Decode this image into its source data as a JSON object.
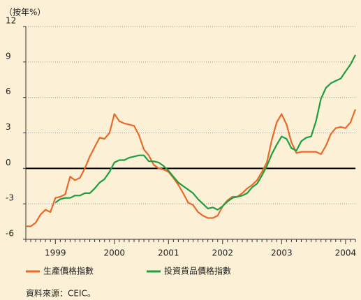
{
  "chart_data": {
    "type": "line",
    "y_axis_label": "（按年%）",
    "categories": [
      null,
      null,
      null,
      null,
      null,
      null,
      "1999",
      null,
      null,
      null,
      null,
      null,
      null,
      null,
      null,
      null,
      null,
      null,
      "2000",
      null,
      null,
      null,
      null,
      null,
      null,
      null,
      null,
      null,
      null,
      "2001",
      null,
      null,
      null,
      null,
      null,
      null,
      null,
      null,
      null,
      null,
      "2002",
      null,
      null,
      null,
      null,
      null,
      null,
      null,
      null,
      null,
      null,
      null,
      "2003",
      null,
      null,
      null,
      null,
      null,
      null,
      null,
      null,
      null,
      null,
      null,
      null,
      "2004",
      null,
      null
    ],
    "series": [
      {
        "name": "生產價格指數",
        "color": "#e8692a",
        "values": [
          -4.9,
          -4.9,
          -4.6,
          -3.9,
          -3.5,
          -3.7,
          -2.5,
          -2.4,
          -2.2,
          -0.7,
          -1.0,
          -0.8,
          0.0,
          1.0,
          1.8,
          2.6,
          2.5,
          3.0,
          4.6,
          4.0,
          3.8,
          3.7,
          3.6,
          2.8,
          1.6,
          1.1,
          0.3,
          0.0,
          -0.1,
          -0.3,
          -0.8,
          -1.4,
          -2.1,
          -2.9,
          -3.1,
          -3.7,
          -4.0,
          -4.2,
          -4.2,
          -4.0,
          -3.2,
          -2.7,
          -2.4,
          -2.4,
          -2.1,
          -1.7,
          -1.4,
          -1.0,
          -0.3,
          0.5,
          2.4,
          3.9,
          4.6,
          3.7,
          2.2,
          1.3,
          1.4,
          1.4,
          1.4,
          1.4,
          1.2,
          1.9,
          2.9,
          3.4,
          3.5,
          3.4,
          3.9,
          5.0
        ]
      },
      {
        "name": "投資貨品價格指數",
        "color": "#1e9e3e",
        "values": [
          null,
          null,
          null,
          null,
          null,
          null,
          -2.9,
          -2.6,
          -2.5,
          -2.5,
          -2.3,
          -2.3,
          -2.1,
          -2.1,
          -1.7,
          -1.2,
          -0.9,
          -0.3,
          0.5,
          0.7,
          0.7,
          0.9,
          1.0,
          1.1,
          1.1,
          0.6,
          0.6,
          0.5,
          0.2,
          -0.2,
          -0.7,
          -1.2,
          -1.5,
          -1.8,
          -2.1,
          -2.6,
          -3.0,
          -3.4,
          -3.3,
          -3.5,
          -3.2,
          -2.8,
          -2.5,
          -2.4,
          -2.3,
          -2.1,
          -1.6,
          -1.3,
          -0.6,
          0.2,
          1.2,
          2.0,
          2.7,
          2.5,
          1.7,
          1.5,
          2.3,
          2.6,
          2.7,
          4.0,
          5.9,
          6.8,
          7.2,
          7.4,
          7.6,
          8.2,
          8.8,
          9.6
        ]
      }
    ],
    "ylim": [
      -6,
      12
    ],
    "yticks": [
      12,
      9,
      6,
      3,
      0,
      -3,
      -6
    ],
    "grid": true,
    "source": "資料來源：CEIC。"
  }
}
